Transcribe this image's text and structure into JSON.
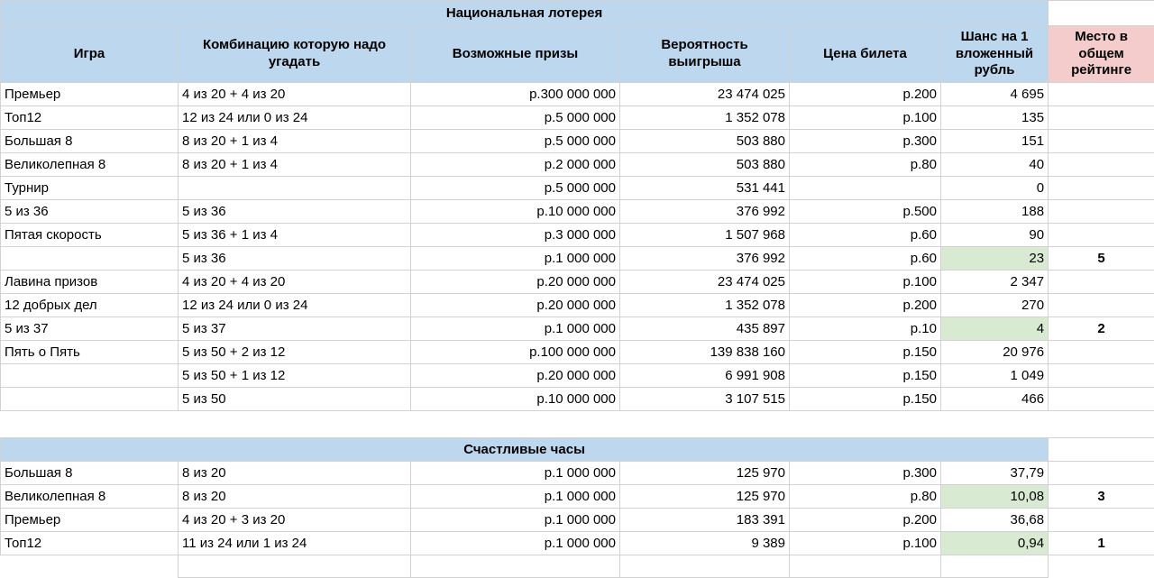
{
  "colors": {
    "section_header": "#bdd7ee",
    "rank_header": "#f4cccc",
    "highlight": "#d9ead3",
    "grid": "#d2d2d2"
  },
  "columns": [
    "Игра",
    "Комбинацию которую надо угадать",
    "Возможные призы",
    "Вероятность выигрыша",
    "Цена билета",
    "Шанс на 1 вложенный рубль",
    "Место в общем рейтинге"
  ],
  "sections": [
    {
      "title": "Национальная лотерея",
      "rows": [
        {
          "game": "Премьер",
          "combo": "4 из 20 + 4 из 20",
          "prize": "р.300 000 000",
          "probability": "23 474 025",
          "price": "р.200",
          "chance": "4 695",
          "rank": "",
          "highlight": false
        },
        {
          "game": "Топ12",
          "combo": "12 из 24 или 0 из 24",
          "prize": "р.5 000 000",
          "probability": "1 352 078",
          "price": "р.100",
          "chance": "135",
          "rank": "",
          "highlight": false
        },
        {
          "game": "Большая 8",
          "combo": "8 из 20 + 1 из 4",
          "prize": "р.5 000 000",
          "probability": "503 880",
          "price": "р.300",
          "chance": "151",
          "rank": "",
          "highlight": false
        },
        {
          "game": "Великолепная 8",
          "combo": "8 из 20 + 1 из 4",
          "prize": "р.2 000 000",
          "probability": "503 880",
          "price": "р.80",
          "chance": "40",
          "rank": "",
          "highlight": false
        },
        {
          "game": "Турнир",
          "combo": "",
          "prize": "р.5 000 000",
          "probability": "531 441",
          "price": "",
          "chance": "0",
          "rank": "",
          "highlight": false
        },
        {
          "game": "5 из 36",
          "combo": "5 из 36",
          "prize": "р.10 000 000",
          "probability": "376 992",
          "price": "р.500",
          "chance": "188",
          "rank": "",
          "highlight": false
        },
        {
          "game": "Пятая скорость",
          "combo": "5 из 36 + 1 из 4",
          "prize": "р.3 000 000",
          "probability": "1 507 968",
          "price": "р.60",
          "chance": "90",
          "rank": "",
          "highlight": false
        },
        {
          "game": "",
          "combo": "5 из 36",
          "prize": "р.1 000 000",
          "probability": "376 992",
          "price": "р.60",
          "chance": "23",
          "rank": "5",
          "highlight": true
        },
        {
          "game": "Лавина призов",
          "combo": "4 из 20 + 4 из 20",
          "prize": "р.20 000 000",
          "probability": "23 474 025",
          "price": "р.100",
          "chance": "2 347",
          "rank": "",
          "highlight": false
        },
        {
          "game": "12 добрых дел",
          "combo": "12 из 24 или 0 из 24",
          "prize": "р.20 000 000",
          "probability": "1 352 078",
          "price": "р.200",
          "chance": "270",
          "rank": "",
          "highlight": false
        },
        {
          "game": "5 из 37",
          "combo": "5 из 37",
          "prize": "р.1 000 000",
          "probability": "435 897",
          "price": "р.10",
          "chance": "4",
          "rank": "2",
          "highlight": true
        },
        {
          "game": "Пять о Пять",
          "combo": "5 из 50 + 2 из 12",
          "prize": "р.100 000 000",
          "probability": "139 838 160",
          "price": "р.150",
          "chance": "20 976",
          "rank": "",
          "highlight": false
        },
        {
          "game": "",
          "combo": "5 из 50 + 1 из 12",
          "prize": "р.20 000 000",
          "probability": "6 991 908",
          "price": "р.150",
          "chance": "1 049",
          "rank": "",
          "highlight": false
        },
        {
          "game": "",
          "combo": "5 из 50",
          "prize": "р.10 000 000",
          "probability": "3 107 515",
          "price": "р.150",
          "chance": "466",
          "rank": "",
          "highlight": false
        }
      ]
    },
    {
      "title": "Счастливые часы",
      "rows": [
        {
          "game": "Большая 8",
          "combo": "8 из 20",
          "prize": "р.1 000 000",
          "probability": "125 970",
          "price": "р.300",
          "chance": "37,79",
          "rank": "",
          "highlight": false
        },
        {
          "game": "Великолепная 8",
          "combo": "8 из 20",
          "prize": "р.1 000 000",
          "probability": "125 970",
          "price": "р.80",
          "chance": "10,08",
          "rank": "3",
          "highlight": true
        },
        {
          "game": "Премьер",
          "combo": "4 из 20 + 3 из 20",
          "prize": "р.1 000 000",
          "probability": "183 391",
          "price": "р.200",
          "chance": "36,68",
          "rank": "",
          "highlight": false
        },
        {
          "game": "Топ12",
          "combo": "11 из 24 или 1 из 24",
          "prize": "р.1 000 000",
          "probability": "9 389",
          "price": "р.100",
          "chance": "0,94",
          "rank": "1",
          "highlight": true
        }
      ]
    }
  ]
}
